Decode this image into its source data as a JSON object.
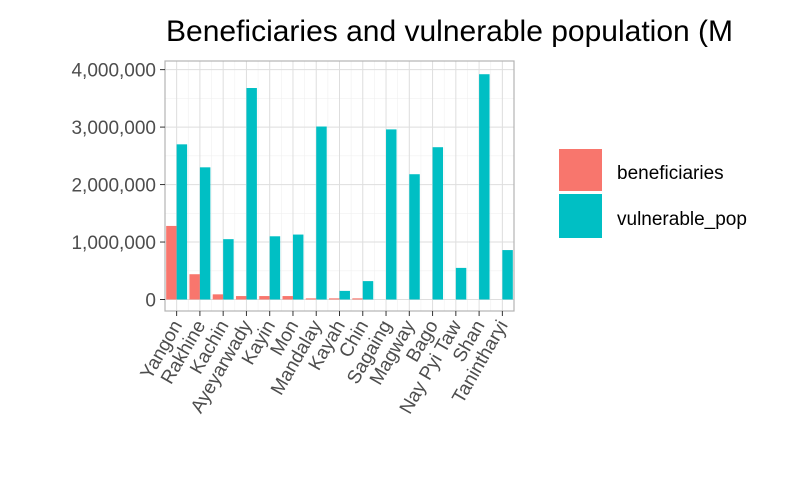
{
  "chart_data": {
    "type": "bar",
    "title": "Beneficiaries and vulnerable population (M",
    "xlabel": "",
    "ylabel": "",
    "categories": [
      "Yangon",
      "Rakhine",
      "Kachin",
      "Ayeyarwady",
      "Kayin",
      "Mon",
      "Mandalay",
      "Kayah",
      "Chin",
      "Sagaing",
      "Magway",
      "Bago",
      "Nay Pyi Taw",
      "Shan",
      "Tanintharyi"
    ],
    "series": [
      {
        "name": "beneficiaries",
        "color": "#F8766D",
        "values": [
          1280000,
          440000,
          90000,
          60000,
          60000,
          60000,
          20000,
          20000,
          20000,
          0,
          0,
          0,
          0,
          0,
          0
        ]
      },
      {
        "name": "vulnerable_pop",
        "color": "#00BFC4",
        "values": [
          2700000,
          2300000,
          1050000,
          3680000,
          1100000,
          1130000,
          3010000,
          150000,
          320000,
          2960000,
          2180000,
          2650000,
          550000,
          3920000,
          860000
        ]
      }
    ],
    "yticks": [
      "0",
      "1,000,000",
      "2,000,000",
      "3,000,000",
      "4,000,000"
    ],
    "ytick_values": [
      0,
      1000000,
      2000000,
      3000000,
      4000000
    ],
    "ylim": [
      -200000,
      4150000
    ],
    "grid": true,
    "legend_position": "right"
  }
}
